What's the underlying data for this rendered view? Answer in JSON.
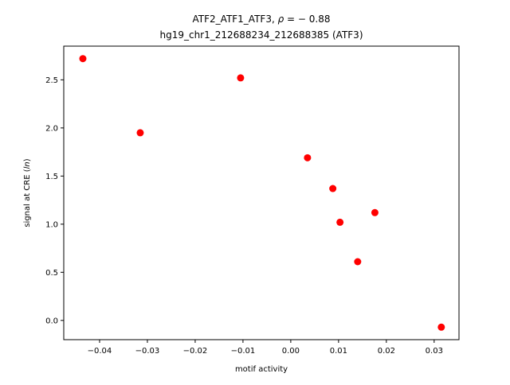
{
  "chart_data": {
    "type": "scatter",
    "title": {
      "line1_prefix": "ATF2_ATF1_ATF3, ",
      "line1_rho": "ρ",
      "line1_suffix": " = − 0.88",
      "line2": "hg19_chr1_212688234_212688385 (ATF3)"
    },
    "xlabel": "motif activity",
    "ylabel_prefix": "signal at CRE (",
    "ylabel_italic": "ln",
    "ylabel_suffix": ")",
    "xlim": [
      -0.0475,
      0.0352
    ],
    "ylim": [
      -0.2,
      2.85
    ],
    "xticks": [
      -0.04,
      -0.03,
      -0.02,
      -0.01,
      0.0,
      0.01,
      0.02,
      0.03
    ],
    "xtick_labels": [
      "−0.04",
      "−0.03",
      "−0.02",
      "−0.01",
      "0.00",
      "0.01",
      "0.02",
      "0.03"
    ],
    "yticks": [
      0.0,
      0.5,
      1.0,
      1.5,
      2.0,
      2.5
    ],
    "ytick_labels": [
      "0.0",
      "0.5",
      "1.0",
      "1.5",
      "2.0",
      "2.5"
    ],
    "grid": false,
    "marker_color": "#ff0000",
    "points": [
      {
        "x": -0.0435,
        "y": 2.72
      },
      {
        "x": -0.0315,
        "y": 1.95
      },
      {
        "x": -0.0105,
        "y": 2.52
      },
      {
        "x": 0.0035,
        "y": 1.69
      },
      {
        "x": 0.0088,
        "y": 1.37
      },
      {
        "x": 0.0103,
        "y": 1.02
      },
      {
        "x": 0.014,
        "y": 0.61
      },
      {
        "x": 0.0176,
        "y": 1.12
      },
      {
        "x": 0.0315,
        "y": -0.07
      }
    ]
  }
}
